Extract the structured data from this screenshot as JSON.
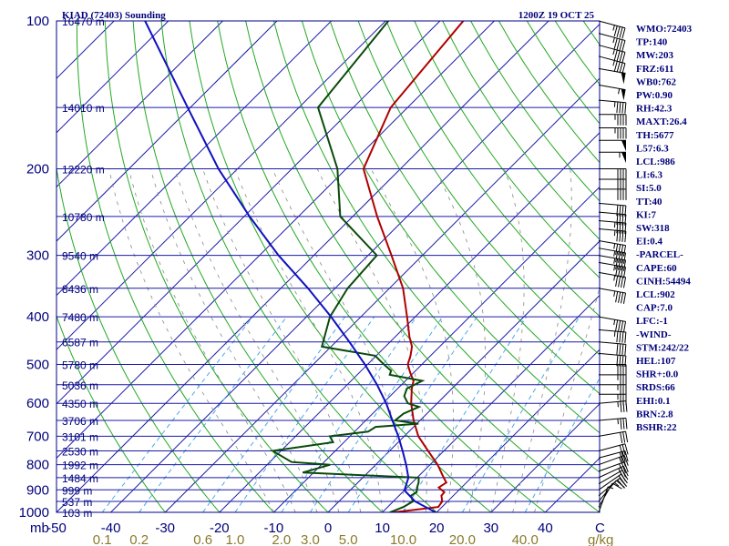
{
  "chart_data": {
    "type": "line",
    "subtype": "skew-t log-p sounding",
    "title_left": "KIAD (72403) Sounding",
    "title_right": "1200Z 19 OCT 25",
    "pressure_axis_unit": "mb",
    "pressure_ticks": [
      "100",
      "200",
      "300",
      "400",
      "500",
      "600",
      "700",
      "800",
      "900",
      "1000"
    ],
    "temperature_ticks": [
      "-50",
      "-40",
      "-30",
      "-20",
      "-10",
      "0",
      "10",
      "20",
      "30",
      "40"
    ],
    "temperature_unit": "C",
    "mixing_ratio_ticks": [
      "0.1",
      "0.2",
      "0.6",
      "1.0",
      "2.0",
      "3.0",
      "5.0",
      "10.0",
      "20.0",
      "40.0"
    ],
    "mixing_ratio_unit": "g/kg",
    "temperature_range_at_1000mb": [
      -50,
      50
    ],
    "pressure_range_mb": [
      1000,
      100
    ],
    "height_labels": [
      {
        "p": 100,
        "label": "16470 m"
      },
      {
        "p": 150,
        "label": "14010 m"
      },
      {
        "p": 200,
        "label": "12220 m"
      },
      {
        "p": 250,
        "label": "10780 m"
      },
      {
        "p": 300,
        "label": "9540 m"
      },
      {
        "p": 350,
        "label": "8436 m"
      },
      {
        "p": 400,
        "label": "7480 m"
      },
      {
        "p": 450,
        "label": "6587 m"
      },
      {
        "p": 500,
        "label": "5780 m"
      },
      {
        "p": 550,
        "label": "5036 m"
      },
      {
        "p": 600,
        "label": "4350 m"
      },
      {
        "p": 650,
        "label": "3706 m"
      },
      {
        "p": 700,
        "label": "3101 m"
      },
      {
        "p": 750,
        "label": "2530 m"
      },
      {
        "p": 800,
        "label": "1992 m"
      },
      {
        "p": 850,
        "label": "1484 m"
      },
      {
        "p": 900,
        "label": "999 m"
      },
      {
        "p": 950,
        "label": "537 m"
      },
      {
        "p": 1000,
        "label": "103 m"
      }
    ],
    "series": [
      {
        "role": "temperature",
        "color": "#b00000",
        "points": [
          {
            "p": 1000,
            "t": 12.1
          },
          {
            "p": 975,
            "t": 19.3
          },
          {
            "p": 950,
            "t": 19.0
          },
          {
            "p": 925,
            "t": 17.8
          },
          {
            "p": 910,
            "t": 17.7
          },
          {
            "p": 890,
            "t": 15.8
          },
          {
            "p": 870,
            "t": 16.3
          },
          {
            "p": 850,
            "t": 14.9
          },
          {
            "p": 800,
            "t": 11.4
          },
          {
            "p": 750,
            "t": 7.1
          },
          {
            "p": 700,
            "t": 2.6
          },
          {
            "p": 650,
            "t": -1.2
          },
          {
            "p": 600,
            "t": -4.8
          },
          {
            "p": 560,
            "t": -7.4
          },
          {
            "p": 540,
            "t": -8.5
          },
          {
            "p": 520,
            "t": -10.6
          },
          {
            "p": 500,
            "t": -12.6
          },
          {
            "p": 480,
            "t": -13.7
          },
          {
            "p": 460,
            "t": -15.1
          },
          {
            "p": 440,
            "t": -17.3
          },
          {
            "p": 400,
            "t": -21.5
          },
          {
            "p": 350,
            "t": -27.5
          },
          {
            "p": 300,
            "t": -35.7
          },
          {
            "p": 250,
            "t": -45.5
          },
          {
            "p": 200,
            "t": -56.8
          },
          {
            "p": 150,
            "t": -63.1
          },
          {
            "p": 100,
            "t": -65.7
          }
        ]
      },
      {
        "role": "dewpoint",
        "color": "#0a4a0a",
        "points": [
          {
            "p": 1000,
            "t": 11.4
          },
          {
            "p": 975,
            "t": 12.9
          },
          {
            "p": 950,
            "t": 13.6
          },
          {
            "p": 925,
            "t": 12.2
          },
          {
            "p": 910,
            "t": 12.6
          },
          {
            "p": 890,
            "t": 11.8
          },
          {
            "p": 870,
            "t": 11.2
          },
          {
            "p": 850,
            "t": 10.3
          },
          {
            "p": 830,
            "t": -12.0
          },
          {
            "p": 800,
            "t": -8.4
          },
          {
            "p": 790,
            "t": -16.0
          },
          {
            "p": 750,
            "t": -21.5
          },
          {
            "p": 720,
            "t": -12.0
          },
          {
            "p": 700,
            "t": -13.7
          },
          {
            "p": 685,
            "t": -7.5
          },
          {
            "p": 670,
            "t": -7.0
          },
          {
            "p": 660,
            "t": 0.3
          },
          {
            "p": 650,
            "t": -4.6
          },
          {
            "p": 630,
            "t": -4.3
          },
          {
            "p": 610,
            "t": -2.7
          },
          {
            "p": 600,
            "t": -5.4
          },
          {
            "p": 580,
            "t": -7.4
          },
          {
            "p": 560,
            "t": -8.3
          },
          {
            "p": 540,
            "t": -6.9
          },
          {
            "p": 525,
            "t": -14.0
          },
          {
            "p": 515,
            "t": -14.5
          },
          {
            "p": 500,
            "t": -17.0
          },
          {
            "p": 480,
            "t": -20.2
          },
          {
            "p": 460,
            "t": -31.7
          },
          {
            "p": 400,
            "t": -35.7
          },
          {
            "p": 350,
            "t": -37.7
          },
          {
            "p": 300,
            "t": -38.4
          },
          {
            "p": 250,
            "t": -52.3
          },
          {
            "p": 200,
            "t": -61.6
          },
          {
            "p": 150,
            "t": -76.5
          },
          {
            "p": 100,
            "t": -79.5
          }
        ]
      },
      {
        "role": "parcel",
        "color": "#1010c0",
        "points": [
          {
            "p": 1000,
            "t": 19.8
          },
          {
            "p": 950,
            "t": 14.0
          },
          {
            "p": 902,
            "t": 10.0
          },
          {
            "p": 850,
            "t": 8.4
          },
          {
            "p": 800,
            "t": 5.6
          },
          {
            "p": 750,
            "t": 2.4
          },
          {
            "p": 700,
            "t": -1.1
          },
          {
            "p": 650,
            "t": -5.1
          },
          {
            "p": 600,
            "t": -9.4
          },
          {
            "p": 550,
            "t": -14.5
          },
          {
            "p": 500,
            "t": -20.5
          },
          {
            "p": 450,
            "t": -27.5
          },
          {
            "p": 400,
            "t": -35.5
          },
          {
            "p": 350,
            "t": -45.0
          },
          {
            "p": 300,
            "t": -56.5
          },
          {
            "p": 250,
            "t": -69.0
          },
          {
            "p": 200,
            "t": -83.5
          },
          {
            "p": 150,
            "t": -100.5
          },
          {
            "p": 100,
            "t": -124.3
          }
        ]
      }
    ],
    "wind_profile": [
      {
        "p": 1000,
        "dir": 200,
        "spd": 5
      },
      {
        "p": 975,
        "dir": 210,
        "spd": 10
      },
      {
        "p": 950,
        "dir": 220,
        "spd": 15
      },
      {
        "p": 925,
        "dir": 230,
        "spd": 20
      },
      {
        "p": 900,
        "dir": 235,
        "spd": 20
      },
      {
        "p": 875,
        "dir": 240,
        "spd": 20
      },
      {
        "p": 850,
        "dir": 245,
        "spd": 25
      },
      {
        "p": 825,
        "dir": 250,
        "spd": 25
      },
      {
        "p": 800,
        "dir": 250,
        "spd": 25
      },
      {
        "p": 775,
        "dir": 255,
        "spd": 30
      },
      {
        "p": 750,
        "dir": 255,
        "spd": 30
      },
      {
        "p": 700,
        "dir": 260,
        "spd": 30
      },
      {
        "p": 650,
        "dir": 265,
        "spd": 35
      },
      {
        "p": 600,
        "dir": 265,
        "spd": 35
      },
      {
        "p": 575,
        "dir": 270,
        "spd": 35
      },
      {
        "p": 550,
        "dir": 270,
        "spd": 35
      },
      {
        "p": 525,
        "dir": 270,
        "spd": 35
      },
      {
        "p": 500,
        "dir": 270,
        "spd": 40
      },
      {
        "p": 475,
        "dir": 275,
        "spd": 40
      },
      {
        "p": 450,
        "dir": 275,
        "spd": 40
      },
      {
        "p": 425,
        "dir": 275,
        "spd": 45
      },
      {
        "p": 400,
        "dir": 280,
        "spd": 45
      },
      {
        "p": 350,
        "dir": 280,
        "spd": 45
      },
      {
        "p": 325,
        "dir": 280,
        "spd": 45
      },
      {
        "p": 310,
        "dir": 280,
        "spd": 45
      },
      {
        "p": 300,
        "dir": 280,
        "spd": 45
      },
      {
        "p": 290,
        "dir": 280,
        "spd": 45
      },
      {
        "p": 280,
        "dir": 280,
        "spd": 45
      },
      {
        "p": 265,
        "dir": 275,
        "spd": 45
      },
      {
        "p": 255,
        "dir": 275,
        "spd": 45
      },
      {
        "p": 245,
        "dir": 275,
        "spd": 40
      },
      {
        "p": 235,
        "dir": 275,
        "spd": 40
      },
      {
        "p": 220,
        "dir": 270,
        "spd": 40
      },
      {
        "p": 210,
        "dir": 270,
        "spd": 40
      },
      {
        "p": 200,
        "dir": 270,
        "spd": 40
      },
      {
        "p": 185,
        "dir": 270,
        "spd": 55
      },
      {
        "p": 175,
        "dir": 270,
        "spd": 50
      },
      {
        "p": 165,
        "dir": 270,
        "spd": 45
      },
      {
        "p": 155,
        "dir": 270,
        "spd": 45
      },
      {
        "p": 145,
        "dir": 275,
        "spd": 45
      },
      {
        "p": 135,
        "dir": 280,
        "spd": 55
      },
      {
        "p": 125,
        "dir": 280,
        "spd": 50
      },
      {
        "p": 118,
        "dir": 285,
        "spd": 45
      },
      {
        "p": 112,
        "dir": 285,
        "spd": 45
      },
      {
        "p": 106,
        "dir": 285,
        "spd": 45
      },
      {
        "p": 100,
        "dir": 285,
        "spd": 45
      }
    ],
    "station_indices": [
      "WMO:72403",
      "TP:140",
      "MW:203",
      "FRZ:611",
      "WB0:762",
      "PW:0.90",
      "RH:42.3",
      "MAXT:26.4",
      "TH:5677",
      "L57:6.3",
      "LCL:986",
      "LI:6.3",
      "SI:5.0",
      "TT:40",
      "KI:7",
      "SW:318",
      "EI:0.4",
      "-PARCEL-",
      "CAPE:60",
      "CINH:54494",
      "LCL:902",
      "CAP:7.0",
      "LFC:-1",
      "-WIND-",
      "STM:242/22",
      "HEL:107",
      "SHR+:0.0",
      "SRDS:66",
      "EHI:0.1",
      "BRN:2.8",
      "BSHR:22"
    ]
  }
}
